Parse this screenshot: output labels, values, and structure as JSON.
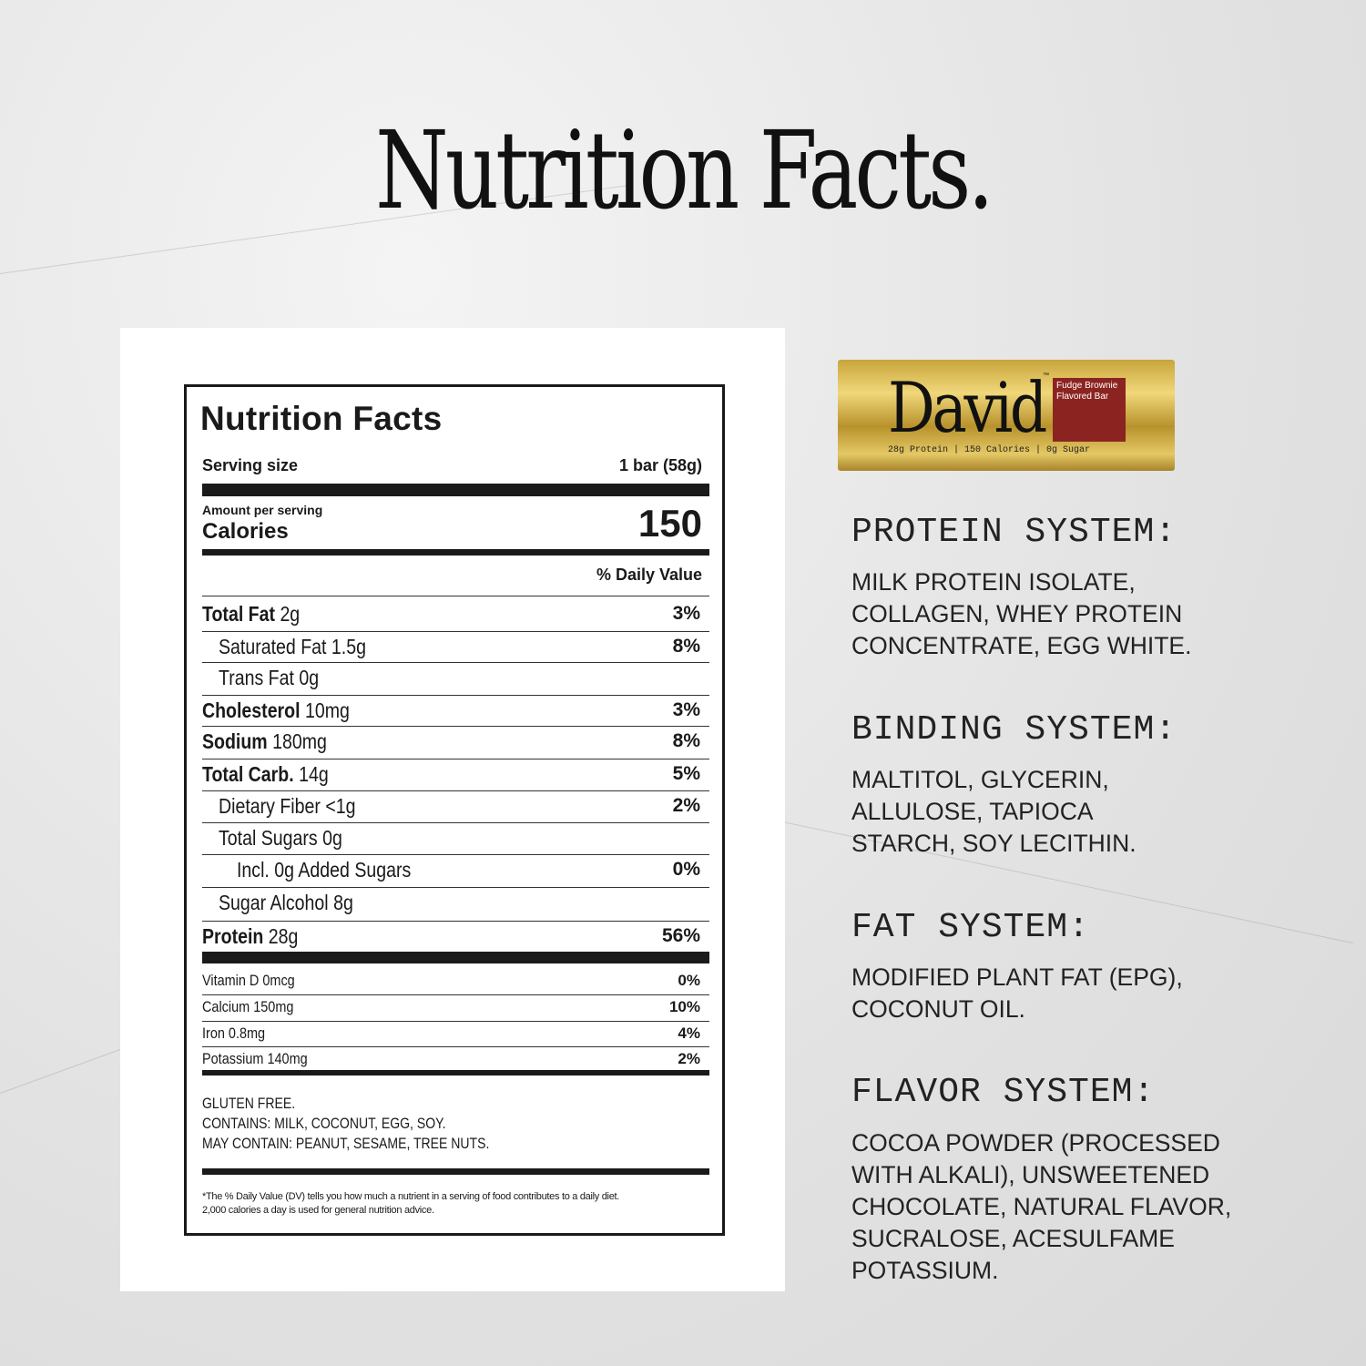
{
  "page_title": "Nutrition Facts.",
  "label": {
    "title": "Nutrition Facts",
    "serving_size_label": "Serving size",
    "serving_size_value": "1 bar (58g)",
    "amount_per_serving": "Amount per serving",
    "calories_label": "Calories",
    "calories_value": "150",
    "daily_value_header": "% Daily Value",
    "nutrients": [
      {
        "name": "Total Fat",
        "amount": "2g",
        "dv": "3%",
        "bold": true,
        "indent": 0
      },
      {
        "name": "Saturated Fat 1.5g",
        "amount": "",
        "dv": "8%",
        "bold": false,
        "indent": 1
      },
      {
        "name": "Trans Fat 0g",
        "amount": "",
        "dv": "",
        "bold": false,
        "indent": 1
      },
      {
        "name": "Cholesterol",
        "amount": "10mg",
        "dv": "3%",
        "bold": true,
        "indent": 0
      },
      {
        "name": "Sodium",
        "amount": "180mg",
        "dv": "8%",
        "bold": true,
        "indent": 0
      },
      {
        "name": "Total Carb.",
        "amount": "14g",
        "dv": "5%",
        "bold": true,
        "indent": 0
      },
      {
        "name": "Dietary Fiber <1g",
        "amount": "",
        "dv": "2%",
        "bold": false,
        "indent": 1
      },
      {
        "name": "Total Sugars 0g",
        "amount": "",
        "dv": "",
        "bold": false,
        "indent": 1
      },
      {
        "name": "Incl. 0g Added Sugars",
        "amount": "",
        "dv": "0%",
        "bold": false,
        "indent": 2
      },
      {
        "name": "Sugar Alcohol 8g",
        "amount": "",
        "dv": "",
        "bold": false,
        "indent": 1
      },
      {
        "name": "Protein",
        "amount": "28g",
        "dv": "56%",
        "bold": true,
        "indent": 0
      }
    ],
    "vitamins": [
      {
        "name": "Vitamin D 0mcg",
        "dv": "0%"
      },
      {
        "name": "Calcium 150mg",
        "dv": "10%"
      },
      {
        "name": "Iron 0.8mg",
        "dv": "4%"
      },
      {
        "name": "Potassium 140mg",
        "dv": "2%"
      }
    ],
    "allergens": [
      "GLUTEN FREE.",
      "CONTAINS: MILK, COCONUT, EGG, SOY.",
      "MAY CONTAIN: PEANUT, SESAME, TREE NUTS."
    ],
    "footnote_1": "*The % Daily Value (DV) tells you how much a nutrient in a serving of food contributes to a daily diet.",
    "footnote_2": "2,000 calories a day is used for general nutrition advice."
  },
  "product": {
    "brand": "David",
    "trademark": "™",
    "flavor": "Fudge Brownie\nFlavored Bar",
    "tagline": "28g Protein | 150 Calories | 0g Sugar",
    "colors": {
      "gold": "#d8bc55",
      "flavor_box": "#8b2420"
    }
  },
  "systems": [
    {
      "heading": "PROTEIN SYSTEM:",
      "body": "MILK PROTEIN ISOLATE,\nCOLLAGEN, WHEY PROTEIN\nCONCENTRATE, EGG WHITE."
    },
    {
      "heading": "BINDING SYSTEM:",
      "body": "MALTITOL, GLYCERIN,\nALLULOSE, TAPIOCA\nSTARCH, SOY LECITHIN."
    },
    {
      "heading": "FAT SYSTEM:",
      "body": "MODIFIED PLANT FAT (EPG),\nCOCONUT OIL."
    },
    {
      "heading": "FLAVOR SYSTEM:",
      "body": "COCOA POWDER (PROCESSED\nWITH ALKALI), UNSWEETENED\nCHOCOLATE, NATURAL FLAVOR,\nSUCRALOSE, ACESULFAME\nPOTASSIUM."
    }
  ]
}
